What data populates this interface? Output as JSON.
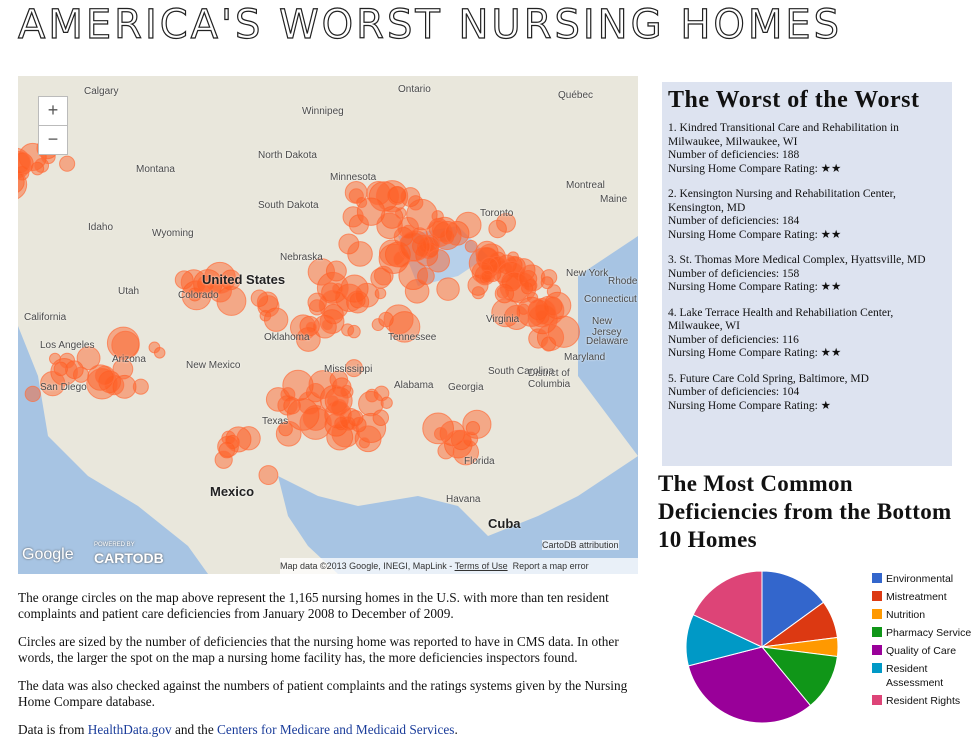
{
  "header": {
    "title": "AMERICA'S WORST NURSING HOMES"
  },
  "map": {
    "zoom_in": "+",
    "zoom_out": "−",
    "labels": [
      "Calgary",
      "Winnipeg",
      "Ontario",
      "Québec",
      "North Dakota",
      "Montana",
      "Minnesota",
      "South Dakota",
      "Montreal",
      "Toronto",
      "Idaho",
      "Wyoming",
      "Nebraska",
      "United States",
      "Utah",
      "Colorado",
      "California",
      "Tennessee",
      "Los Angeles",
      "Arizona",
      "New Mexico",
      "Mississippi",
      "Alabama",
      "Georgia",
      "San Diego",
      "Texas",
      "Florida",
      "Mexico",
      "Havana",
      "Cuba",
      "Maryland",
      "Delaware",
      "New Jersey",
      "Connecticut",
      "Rhode",
      "Maine",
      "New York",
      "District of Columbia",
      "Virginia",
      "Oklahoma",
      "South Carolina"
    ],
    "google": "Google",
    "powered_by": "POWERED BY",
    "cartodb": "CARTODB",
    "attribution": "CartoDB attribution",
    "map_data": "Map data ©2013 Google, INEGI, MapLink - ",
    "terms": "Terms of Use",
    "report": "Report a map error"
  },
  "article": {
    "paragraphs": [
      "The orange circles on the map above represent the 1,165 nursing homes in the U.S. with more than ten resident complaints and patient care deficiencies from January 2008 to December of 2009.",
      "Circles are sized by the number of deficiencies that the nursing home was reported to have in CMS data. In other words, the larger the spot on the map a nursing home facility has, the more deficiencies inspectors found.",
      "The data was also checked against the numbers of patient complaints and the ratings systems given by the Nursing Home Compare database."
    ],
    "source": {
      "prefix": "Data is from ",
      "link1": "HealthData.gov",
      "middle": " and the ",
      "link2": "Centers for Medicare and Medicaid Services",
      "suffix": "."
    }
  },
  "sidebar": {
    "title": "The Worst of the Worst",
    "homes": [
      {
        "name": "1. Kindred Transitional Care and Rehabilitation in Milwaukee, Milwaukee, WI",
        "deficiencies": "Number of deficiencies: 188",
        "rating": "Nursing Home Compare Rating: ★★"
      },
      {
        "name": "2. Kensington Nursing and Rehabilitation Center, Kensington, MD",
        "deficiencies": "Number of deficiencies: 184",
        "rating": "Nursing Home Compare Rating: ★★"
      },
      {
        "name": "3. St. Thomas More Medical Complex, Hyattsville, MD",
        "deficiencies": "Number of deficiencies: 158",
        "rating": "Nursing Home Compare Rating: ★★"
      },
      {
        "name": "4. Lake Terrace Health and Rehabiliation Center, Milwaukee, WI",
        "deficiencies": "Number of deficiencies: 116",
        "rating": "Nursing Home Compare Rating: ★★"
      },
      {
        "name": "5. Future Care Cold Spring, Baltimore, MD",
        "deficiencies": "Number of deficiencies: 104",
        "rating": "Nursing Home Compare Rating: ★"
      }
    ]
  },
  "chart_data": {
    "type": "pie",
    "title": "The Most Common Deficiencies from the Bottom 10 Homes",
    "categories": [
      "Environmental",
      "Mistreatment",
      "Nutrition",
      "Pharmacy Service",
      "Quality of Care",
      "Resident Assessment",
      "Resident Rights"
    ],
    "values": [
      15,
      8,
      4,
      12,
      32,
      11,
      18
    ],
    "colors": [
      "#3366cc",
      "#dc3912",
      "#ff9900",
      "#109618",
      "#990099",
      "#0099c6",
      "#dd4477"
    ],
    "legend": "right"
  }
}
